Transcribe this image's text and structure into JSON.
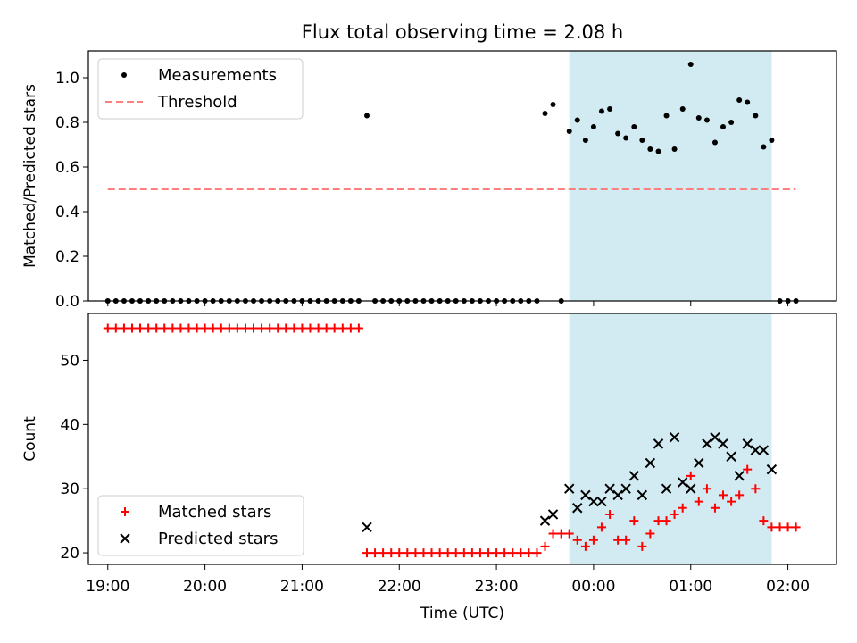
{
  "title": "Flux total observing time = 2.08 h",
  "colors": {
    "measurement": "#000000",
    "threshold": "#ff7f7f",
    "matched": "#ff0000",
    "predicted": "#000000",
    "shade": "#add8e6"
  },
  "chart_data": [
    {
      "type": "scatter",
      "ylabel": "Matched/Predicted stars",
      "xlabel": "",
      "xlim": [
        18.8,
        26.5
      ],
      "ylim": [
        0,
        1.12
      ],
      "yticks": [
        0.0,
        0.2,
        0.4,
        0.6,
        0.8,
        1.0
      ],
      "ytick_labels": [
        "0.0",
        "0.2",
        "0.4",
        "0.6",
        "0.8",
        "1.0"
      ],
      "legend_position": "top-left",
      "shaded_interval": [
        23.75,
        25.833
      ],
      "threshold": {
        "name": "Threshold",
        "y": 0.5,
        "x_range": [
          19.0,
          26.08
        ]
      },
      "series": [
        {
          "name": "Measurements",
          "x": [
            19.0,
            19.083,
            19.167,
            19.25,
            19.333,
            19.417,
            19.5,
            19.583,
            19.667,
            19.75,
            19.833,
            19.917,
            20.0,
            20.083,
            20.167,
            20.25,
            20.333,
            20.417,
            20.5,
            20.583,
            20.667,
            20.75,
            20.833,
            20.917,
            21.0,
            21.083,
            21.167,
            21.25,
            21.333,
            21.417,
            21.5,
            21.583,
            21.667,
            21.75,
            21.833,
            21.917,
            22.0,
            22.083,
            22.167,
            22.25,
            22.333,
            22.417,
            22.5,
            22.583,
            22.667,
            22.75,
            22.833,
            22.917,
            23.0,
            23.083,
            23.167,
            23.25,
            23.333,
            23.417,
            23.5,
            23.583,
            23.667,
            23.75,
            23.833,
            23.917,
            24.0,
            24.083,
            24.167,
            24.25,
            24.333,
            24.417,
            24.5,
            24.583,
            24.667,
            24.75,
            24.833,
            24.917,
            25.0,
            25.083,
            25.167,
            25.25,
            25.333,
            25.417,
            25.5,
            25.583,
            25.667,
            25.75,
            25.833,
            25.917,
            26.0,
            26.083
          ],
          "y": [
            0,
            0,
            0,
            0,
            0,
            0,
            0,
            0,
            0,
            0,
            0,
            0,
            0,
            0,
            0,
            0,
            0,
            0,
            0,
            0,
            0,
            0,
            0,
            0,
            0,
            0,
            0,
            0,
            0,
            0,
            0,
            0,
            0.83,
            0,
            0,
            0,
            0,
            0,
            0,
            0,
            0,
            0,
            0,
            0,
            0,
            0,
            0,
            0,
            0,
            0,
            0,
            0,
            0,
            0,
            0.84,
            0.88,
            0,
            0.76,
            0.81,
            0.72,
            0.78,
            0.85,
            0.86,
            0.75,
            0.73,
            0.78,
            0.72,
            0.68,
            0.67,
            0.83,
            0.68,
            0.86,
            1.06,
            0.82,
            0.81,
            0.71,
            0.78,
            0.8,
            0.9,
            0.89,
            0.83,
            0.69,
            0.72,
            0,
            0,
            0
          ]
        }
      ]
    },
    {
      "type": "scatter",
      "ylabel": "Count",
      "xlabel": "Time (UTC)",
      "xlim": [
        18.8,
        26.5
      ],
      "ylim": [
        18.2,
        57.3
      ],
      "yticks": [
        20,
        30,
        40,
        50
      ],
      "ytick_labels": [
        "20",
        "30",
        "40",
        "50"
      ],
      "xticks": [
        19,
        20,
        21,
        22,
        23,
        24,
        25,
        26
      ],
      "xtick_labels": [
        "19:00",
        "20:00",
        "21:00",
        "22:00",
        "23:00",
        "00:00",
        "01:00",
        "02:00"
      ],
      "legend_position": "bottom-left",
      "shaded_interval": [
        23.75,
        25.833
      ],
      "series": [
        {
          "name": "Matched stars",
          "marker": "plus",
          "x": [
            19.0,
            19.083,
            19.167,
            19.25,
            19.333,
            19.417,
            19.5,
            19.583,
            19.667,
            19.75,
            19.833,
            19.917,
            20.0,
            20.083,
            20.167,
            20.25,
            20.333,
            20.417,
            20.5,
            20.583,
            20.667,
            20.75,
            20.833,
            20.917,
            21.0,
            21.083,
            21.167,
            21.25,
            21.333,
            21.417,
            21.5,
            21.583,
            21.667,
            21.75,
            21.833,
            21.917,
            22.0,
            22.083,
            22.167,
            22.25,
            22.333,
            22.417,
            22.5,
            22.583,
            22.667,
            22.75,
            22.833,
            22.917,
            23.0,
            23.083,
            23.167,
            23.25,
            23.333,
            23.417,
            23.5,
            23.583,
            23.667,
            23.75,
            23.833,
            23.917,
            24.0,
            24.083,
            24.167,
            24.25,
            24.333,
            24.417,
            24.5,
            24.583,
            24.667,
            24.75,
            24.833,
            24.917,
            25.0,
            25.083,
            25.167,
            25.25,
            25.333,
            25.417,
            25.5,
            25.583,
            25.667,
            25.75,
            25.833,
            25.917,
            26.0,
            26.083
          ],
          "y": [
            55,
            55,
            55,
            55,
            55,
            55,
            55,
            55,
            55,
            55,
            55,
            55,
            55,
            55,
            55,
            55,
            55,
            55,
            55,
            55,
            55,
            55,
            55,
            55,
            55,
            55,
            55,
            55,
            55,
            55,
            55,
            55,
            20,
            20,
            20,
            20,
            20,
            20,
            20,
            20,
            20,
            20,
            20,
            20,
            20,
            20,
            20,
            20,
            20,
            20,
            20,
            20,
            20,
            20,
            21,
            23,
            23,
            23,
            22,
            21,
            22,
            24,
            26,
            22,
            22,
            25,
            21,
            23,
            25,
            25,
            26,
            27,
            32,
            28,
            30,
            27,
            29,
            28,
            29,
            33,
            30,
            25,
            24,
            24,
            24,
            24
          ]
        },
        {
          "name": "Predicted stars",
          "marker": "x",
          "x": [
            21.667,
            23.5,
            23.583,
            23.75,
            23.833,
            23.917,
            24.0,
            24.083,
            24.167,
            24.25,
            24.333,
            24.417,
            24.5,
            24.583,
            24.667,
            24.75,
            24.833,
            24.917,
            25.0,
            25.083,
            25.167,
            25.25,
            25.333,
            25.417,
            25.5,
            25.583,
            25.667,
            25.75,
            25.833
          ],
          "y": [
            24,
            25,
            26,
            30,
            27,
            29,
            28,
            28,
            30,
            29,
            30,
            32,
            29,
            34,
            37,
            30,
            38,
            31,
            30,
            34,
            37,
            38,
            37,
            35,
            32,
            37,
            36,
            36,
            33
          ]
        }
      ]
    }
  ]
}
